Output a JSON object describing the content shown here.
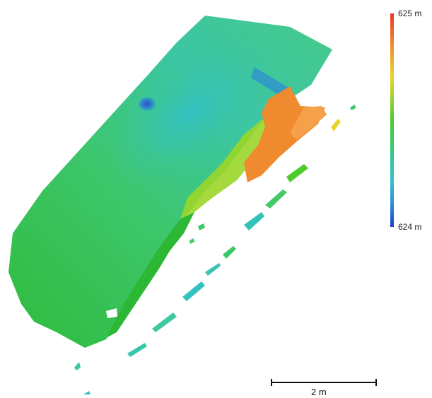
{
  "legend": {
    "max_label": "625 m",
    "min_label": "624 m",
    "colors": [
      "#e8362a",
      "#f08a2c",
      "#e8d42a",
      "#4ccc2e",
      "#36c4c8",
      "#1e3cd2"
    ]
  },
  "scale": {
    "label": "2 m"
  },
  "map": {
    "colors": {
      "base_green": "#3ec86a",
      "deep_green": "#2fbb3c",
      "cyan": "#33c2b8",
      "blue": "#2a5fd0",
      "yellow_green": "#9ad628",
      "orange": "#ef8a2e"
    }
  }
}
